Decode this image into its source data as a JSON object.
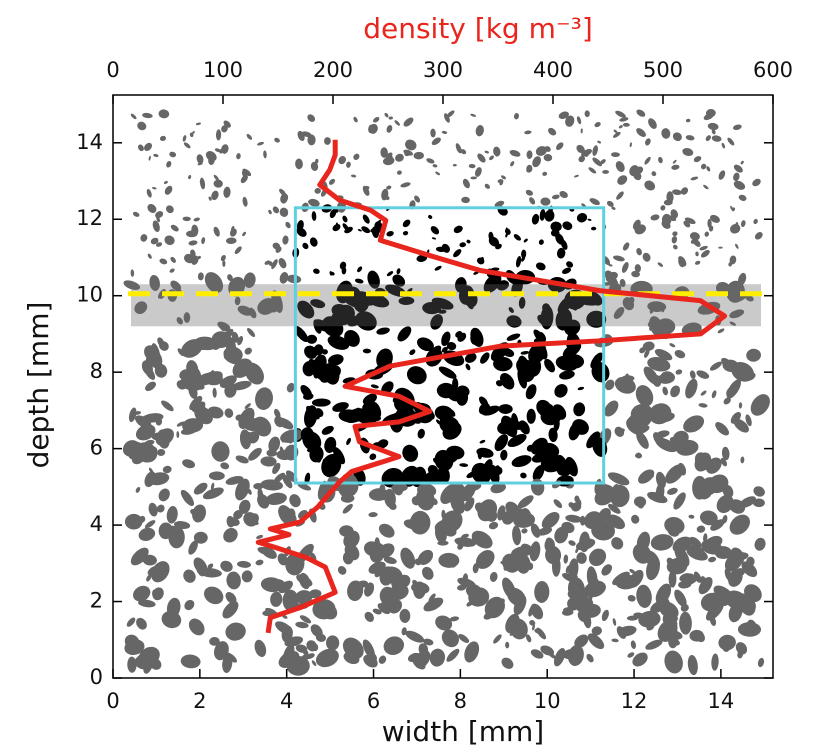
{
  "chart_data": {
    "type": "line",
    "title": "density [kg m⁻³]",
    "xlabel": "width [mm]",
    "ylabel": "depth [mm]",
    "xlim": [
      0,
      15.2
    ],
    "xticks": [
      0,
      2,
      4,
      6,
      8,
      10,
      12,
      14
    ],
    "ylim": [
      0,
      15.25
    ],
    "yticks": [
      0,
      2,
      4,
      6,
      8,
      10,
      12,
      14
    ],
    "x2lim": [
      0,
      600
    ],
    "x2ticks": [
      0,
      100,
      200,
      300,
      400,
      500,
      600
    ],
    "series": [
      {
        "color": "#e8261e",
        "axis": "x2",
        "x": [
          141,
          143,
          170,
          202,
          193,
          175,
          147,
          132,
          160,
          143,
          170,
          186,
          206,
          217,
          260,
          224,
          220,
          260,
          288,
          260,
          211,
          252,
          352,
          443,
          534,
          556,
          534,
          443,
          334,
          288,
          243,
          248,
          234,
          206,
          188,
          197,
          202,
          202
        ],
        "values": [
          1.18,
          1.58,
          1.84,
          2.24,
          2.9,
          3.16,
          3.42,
          3.55,
          3.75,
          3.9,
          4.08,
          4.47,
          5.13,
          5.4,
          5.79,
          6.18,
          6.58,
          6.7,
          6.97,
          7.37,
          7.63,
          8.16,
          8.68,
          8.82,
          9.0,
          9.47,
          9.87,
          10.13,
          10.66,
          11.05,
          11.45,
          11.97,
          12.24,
          12.5,
          12.9,
          13.29,
          13.68,
          14.08
        ]
      }
    ],
    "hline": {
      "y": 10.05,
      "color": "#ffee00"
    },
    "roi": {
      "x": [
        4.2,
        11.3
      ],
      "y": [
        5.1,
        12.3
      ],
      "color": "#5fd0e0"
    }
  }
}
